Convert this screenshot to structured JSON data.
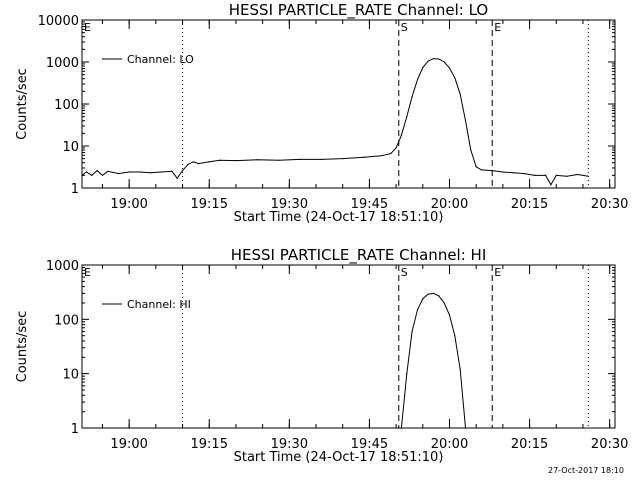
{
  "footer": {
    "timestamp": "27-Oct-2017 18:10"
  },
  "chart_data": [
    {
      "type": "line",
      "title": "HESSI PARTICLE_RATE Channel: LO",
      "xlabel": "Start Time (24-Oct-17 18:51:10)",
      "ylabel": "Counts/sec",
      "y_scale": "log",
      "ylim": [
        1,
        10000
      ],
      "xlim": [
        "18:51:10",
        "20:31:00"
      ],
      "x_tick_labels": [
        "19:00",
        "19:15",
        "19:30",
        "19:45",
        "20:00",
        "20:15",
        "20:30"
      ],
      "y_tick_labels": [
        "1",
        "10",
        "100",
        "1000",
        "10000"
      ],
      "legend": {
        "position": "top-left",
        "entries": [
          "Channel: LO"
        ]
      },
      "markers": [
        {
          "label": "E",
          "time": "18:51:10",
          "style": "dotted"
        },
        {
          "label": "",
          "time": "19:10:00",
          "style": "dotted"
        },
        {
          "label": "S",
          "time": "19:50:30",
          "style": "dashed"
        },
        {
          "label": "E",
          "time": "20:08:00",
          "style": "dashed"
        },
        {
          "label": "",
          "time": "20:26:00",
          "style": "dotted"
        }
      ],
      "series": [
        {
          "name": "Channel: LO",
          "points": [
            [
              "18:51:10",
              2.0
            ],
            [
              "18:52:00",
              2.4
            ],
            [
              "18:53:00",
              2.0
            ],
            [
              "18:54:00",
              2.6
            ],
            [
              "18:55:00",
              2.0
            ],
            [
              "18:56:00",
              2.5
            ],
            [
              "18:58:00",
              2.2
            ],
            [
              "19:00:00",
              2.4
            ],
            [
              "19:02:00",
              2.4
            ],
            [
              "19:04:00",
              2.3
            ],
            [
              "19:06:00",
              2.4
            ],
            [
              "19:08:00",
              2.5
            ],
            [
              "19:09:00",
              1.7
            ],
            [
              "19:10:00",
              2.6
            ],
            [
              "19:11:00",
              3.6
            ],
            [
              "19:12:00",
              4.2
            ],
            [
              "19:13:00",
              3.8
            ],
            [
              "19:15:00",
              4.2
            ],
            [
              "19:17:00",
              4.6
            ],
            [
              "19:20:00",
              4.5
            ],
            [
              "19:24:00",
              4.7
            ],
            [
              "19:28:00",
              4.6
            ],
            [
              "19:32:00",
              4.8
            ],
            [
              "19:36:00",
              4.8
            ],
            [
              "19:40:00",
              5.0
            ],
            [
              "19:44:00",
              5.4
            ],
            [
              "19:47:00",
              5.8
            ],
            [
              "19:49:00",
              6.6
            ],
            [
              "19:50:00",
              9.0
            ],
            [
              "19:51:00",
              18
            ],
            [
              "19:52:00",
              50
            ],
            [
              "19:53:00",
              150
            ],
            [
              "19:54:00",
              380
            ],
            [
              "19:55:00",
              740
            ],
            [
              "19:56:00",
              1050
            ],
            [
              "19:57:00",
              1200
            ],
            [
              "19:58:00",
              1180
            ],
            [
              "19:59:00",
              1000
            ],
            [
              "20:00:00",
              720
            ],
            [
              "20:01:00",
              420
            ],
            [
              "20:02:00",
              170
            ],
            [
              "20:03:00",
              40
            ],
            [
              "20:04:00",
              8
            ],
            [
              "20:05:00",
              3.2
            ],
            [
              "20:06:00",
              2.7
            ],
            [
              "20:08:00",
              2.6
            ],
            [
              "20:10:00",
              2.4
            ],
            [
              "20:12:00",
              2.3
            ],
            [
              "20:14:00",
              2.2
            ],
            [
              "20:16:00",
              2.0
            ],
            [
              "20:18:00",
              2.0
            ],
            [
              "20:19:00",
              1.2
            ],
            [
              "20:20:00",
              2.0
            ],
            [
              "20:22:00",
              1.9
            ],
            [
              "20:24:00",
              2.1
            ],
            [
              "20:26:00",
              1.9
            ]
          ]
        }
      ]
    },
    {
      "type": "line",
      "title": "HESSI PARTICLE_RATE Channel: HI",
      "xlabel": "Start Time (24-Oct-17 18:51:10)",
      "ylabel": "Counts/sec",
      "y_scale": "log",
      "ylim": [
        1,
        1000
      ],
      "xlim": [
        "18:51:10",
        "20:31:00"
      ],
      "x_tick_labels": [
        "19:00",
        "19:15",
        "19:30",
        "19:45",
        "20:00",
        "20:15",
        "20:30"
      ],
      "y_tick_labels": [
        "1",
        "10",
        "100",
        "1000"
      ],
      "legend": {
        "position": "top-left",
        "entries": [
          "Channel: HI"
        ]
      },
      "markers": [
        {
          "label": "E",
          "time": "18:51:10",
          "style": "dotted"
        },
        {
          "label": "",
          "time": "19:10:00",
          "style": "dotted"
        },
        {
          "label": "S",
          "time": "19:50:30",
          "style": "dashed"
        },
        {
          "label": "E",
          "time": "20:08:00",
          "style": "dashed"
        },
        {
          "label": "",
          "time": "20:26:00",
          "style": "dotted"
        }
      ],
      "series": [
        {
          "name": "Channel: HI",
          "points": [
            [
              "19:51:00",
              1.0
            ],
            [
              "19:52:00",
              10
            ],
            [
              "19:53:00",
              60
            ],
            [
              "19:54:00",
              150
            ],
            [
              "19:55:00",
              240
            ],
            [
              "19:56:00",
              290
            ],
            [
              "19:57:00",
              300
            ],
            [
              "19:58:00",
              270
            ],
            [
              "19:59:00",
              200
            ],
            [
              "20:00:00",
              120
            ],
            [
              "20:01:00",
              50
            ],
            [
              "20:02:00",
              12
            ],
            [
              "20:03:00",
              1.0
            ]
          ]
        }
      ]
    }
  ]
}
